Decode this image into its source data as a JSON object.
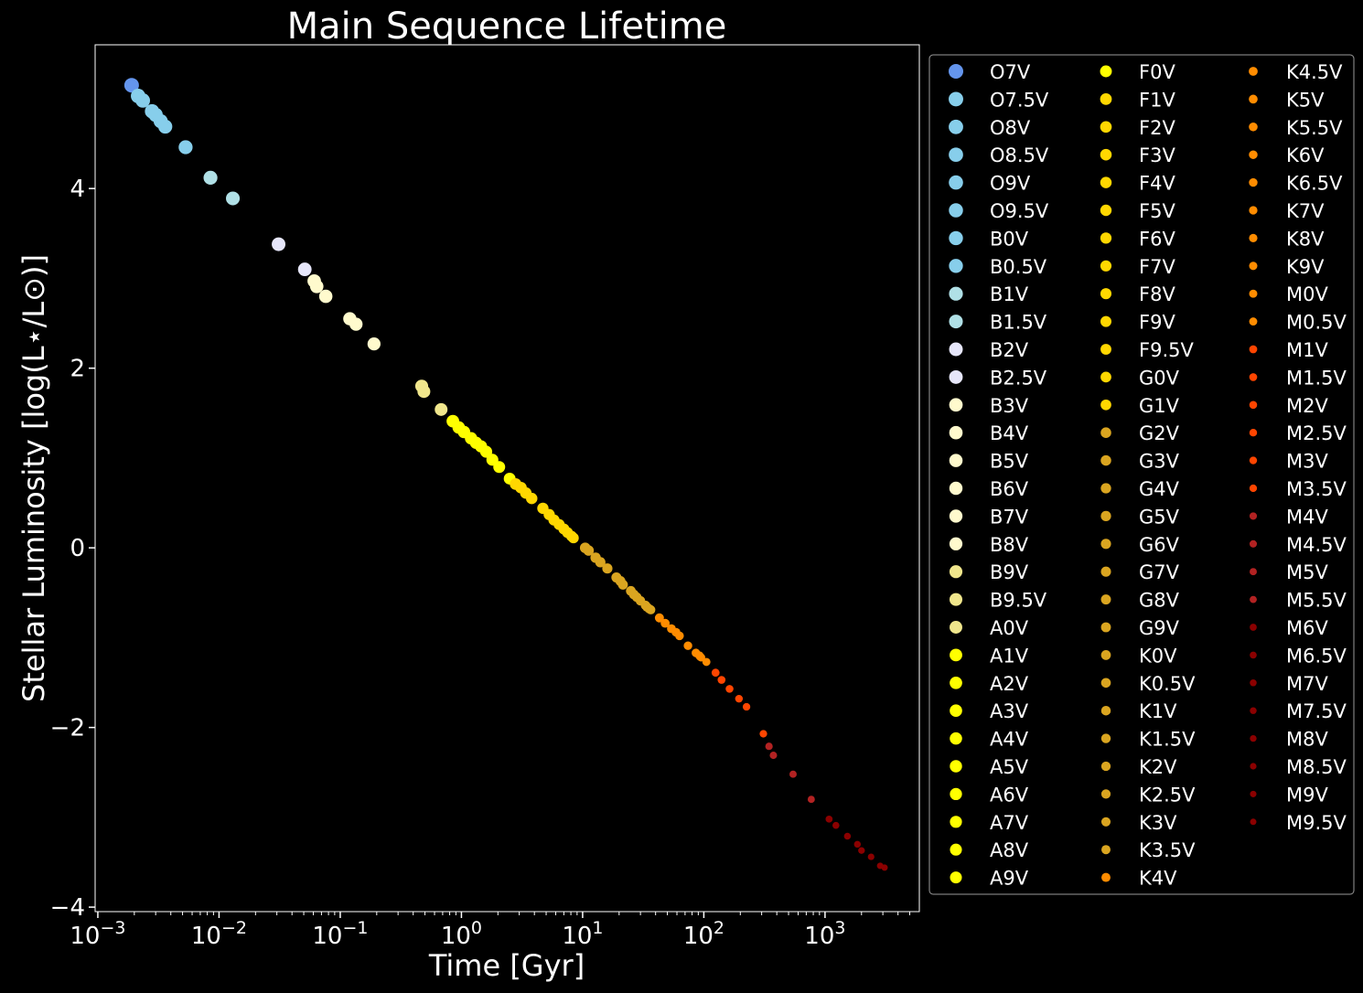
{
  "chart_data": {
    "type": "scatter",
    "title": "Main Sequence Lifetime",
    "xlabel": "Time [Gyr]",
    "ylabel": "Stellar Luminosity [log(L⋆/L⊙)]",
    "xscale": "log",
    "xlim": [
      0.00095,
      6000
    ],
    "ylim": [
      -4.05,
      5.6
    ],
    "x_ticks": [
      {
        "value": 0.001,
        "base": "10",
        "exp": "−3"
      },
      {
        "value": 0.01,
        "base": "10",
        "exp": "−2"
      },
      {
        "value": 0.1,
        "base": "10",
        "exp": "−1"
      },
      {
        "value": 1,
        "base": "10",
        "exp": "0"
      },
      {
        "value": 10,
        "base": "10",
        "exp": "1"
      },
      {
        "value": 100,
        "base": "10",
        "exp": "2"
      },
      {
        "value": 1000,
        "base": "10",
        "exp": "3"
      }
    ],
    "y_ticks": [
      {
        "value": 4,
        "label": "4"
      },
      {
        "value": 2,
        "label": "2"
      },
      {
        "value": 0,
        "label": "0"
      },
      {
        "value": -2,
        "label": "−2"
      },
      {
        "value": -4,
        "label": "−4"
      }
    ],
    "grid": false,
    "legend_position": "outside-right",
    "legend_columns": 3,
    "series": [
      {
        "name": "O7V",
        "color": "#6495ed",
        "x": 0.0019,
        "y": 5.15
      },
      {
        "name": "O7.5V",
        "color": "#87ceeb",
        "x": 0.00215,
        "y": 5.03
      },
      {
        "name": "O8V",
        "color": "#87ceeb",
        "x": 0.00235,
        "y": 4.98
      },
      {
        "name": "O8.5V",
        "color": "#87ceeb",
        "x": 0.0028,
        "y": 4.86
      },
      {
        "name": "O9V",
        "color": "#87ceeb",
        "x": 0.003,
        "y": 4.82
      },
      {
        "name": "O9.5V",
        "color": "#87ceeb",
        "x": 0.0033,
        "y": 4.75
      },
      {
        "name": "B0V",
        "color": "#87ceeb",
        "x": 0.0036,
        "y": 4.69
      },
      {
        "name": "B0.5V",
        "color": "#87ceeb",
        "x": 0.0053,
        "y": 4.46
      },
      {
        "name": "B1V",
        "color": "#b0e0e6",
        "x": 0.0085,
        "y": 4.12
      },
      {
        "name": "B1.5V",
        "color": "#b0e0e6",
        "x": 0.013,
        "y": 3.89
      },
      {
        "name": "B2V",
        "color": "#e6e6fa",
        "x": 0.031,
        "y": 3.38
      },
      {
        "name": "B2.5V",
        "color": "#e6e6fa",
        "x": 0.051,
        "y": 3.1
      },
      {
        "name": "B3V",
        "color": "#fffacd",
        "x": 0.061,
        "y": 2.97
      },
      {
        "name": "B4V",
        "color": "#fffacd",
        "x": 0.064,
        "y": 2.91
      },
      {
        "name": "B5V",
        "color": "#fffacd",
        "x": 0.076,
        "y": 2.8
      },
      {
        "name": "B6V",
        "color": "#fffacd",
        "x": 0.12,
        "y": 2.55
      },
      {
        "name": "B7V",
        "color": "#fffacd",
        "x": 0.135,
        "y": 2.49
      },
      {
        "name": "B8V",
        "color": "#fffacd",
        "x": 0.19,
        "y": 2.27
      },
      {
        "name": "B9V",
        "color": "#f0e68c",
        "x": 0.47,
        "y": 1.8
      },
      {
        "name": "B9.5V",
        "color": "#f0e68c",
        "x": 0.49,
        "y": 1.74
      },
      {
        "name": "A0V",
        "color": "#f0e68c",
        "x": 0.68,
        "y": 1.54
      },
      {
        "name": "A1V",
        "color": "#ffff00",
        "x": 0.85,
        "y": 1.41
      },
      {
        "name": "A2V",
        "color": "#ffff00",
        "x": 0.95,
        "y": 1.34
      },
      {
        "name": "A3V",
        "color": "#ffff00",
        "x": 1.05,
        "y": 1.29
      },
      {
        "name": "A4V",
        "color": "#ffff00",
        "x": 1.2,
        "y": 1.22
      },
      {
        "name": "A5V",
        "color": "#ffff00",
        "x": 1.32,
        "y": 1.17
      },
      {
        "name": "A6V",
        "color": "#ffff00",
        "x": 1.45,
        "y": 1.13
      },
      {
        "name": "A7V",
        "color": "#ffff00",
        "x": 1.6,
        "y": 1.07
      },
      {
        "name": "A8V",
        "color": "#ffff00",
        "x": 1.8,
        "y": 0.98
      },
      {
        "name": "A9V",
        "color": "#ffff00",
        "x": 2.05,
        "y": 0.9
      },
      {
        "name": "F0V",
        "color": "#ffff00",
        "x": 2.5,
        "y": 0.77
      },
      {
        "name": "F1V",
        "color": "#ffd700",
        "x": 2.8,
        "y": 0.71
      },
      {
        "name": "F2V",
        "color": "#ffd700",
        "x": 3.1,
        "y": 0.67
      },
      {
        "name": "F3V",
        "color": "#ffd700",
        "x": 3.4,
        "y": 0.61
      },
      {
        "name": "F4V",
        "color": "#ffd700",
        "x": 3.8,
        "y": 0.55
      },
      {
        "name": "F5V",
        "color": "#ffd700",
        "x": 4.7,
        "y": 0.44
      },
      {
        "name": "F6V",
        "color": "#ffd700",
        "x": 5.3,
        "y": 0.37
      },
      {
        "name": "F7V",
        "color": "#ffd700",
        "x": 5.8,
        "y": 0.31
      },
      {
        "name": "F8V",
        "color": "#ffd700",
        "x": 6.4,
        "y": 0.26
      },
      {
        "name": "F9V",
        "color": "#ffd700",
        "x": 7.0,
        "y": 0.21
      },
      {
        "name": "F9.5V",
        "color": "#ffd700",
        "x": 7.5,
        "y": 0.17
      },
      {
        "name": "G0V",
        "color": "#ffd700",
        "x": 8.1,
        "y": 0.13
      },
      {
        "name": "G1V",
        "color": "#ffd700",
        "x": 8.4,
        "y": 0.11
      },
      {
        "name": "G2V",
        "color": "#daa520",
        "x": 10.5,
        "y": 0.0
      },
      {
        "name": "G3V",
        "color": "#daa520",
        "x": 11.2,
        "y": -0.03
      },
      {
        "name": "G4V",
        "color": "#daa520",
        "x": 12.8,
        "y": -0.11
      },
      {
        "name": "G5V",
        "color": "#daa520",
        "x": 14.0,
        "y": -0.16
      },
      {
        "name": "G6V",
        "color": "#daa520",
        "x": 16.0,
        "y": -0.23
      },
      {
        "name": "G7V",
        "color": "#daa520",
        "x": 19.0,
        "y": -0.33
      },
      {
        "name": "G8V",
        "color": "#daa520",
        "x": 20.5,
        "y": -0.37
      },
      {
        "name": "G9V",
        "color": "#daa520",
        "x": 21.5,
        "y": -0.41
      },
      {
        "name": "K0V",
        "color": "#daa520",
        "x": 25.0,
        "y": -0.48
      },
      {
        "name": "K0.5V",
        "color": "#daa520",
        "x": 26.5,
        "y": -0.52
      },
      {
        "name": "K1V",
        "color": "#daa520",
        "x": 28.0,
        "y": -0.55
      },
      {
        "name": "K1.5V",
        "color": "#daa520",
        "x": 30.0,
        "y": -0.59
      },
      {
        "name": "K2V",
        "color": "#daa520",
        "x": 33.0,
        "y": -0.64
      },
      {
        "name": "K2.5V",
        "color": "#daa520",
        "x": 34.0,
        "y": -0.66
      },
      {
        "name": "K3V",
        "color": "#daa520",
        "x": 35.5,
        "y": -0.68
      },
      {
        "name": "K3.5V",
        "color": "#daa520",
        "x": 36.5,
        "y": -0.69
      },
      {
        "name": "K4V",
        "color": "#ff8c00",
        "x": 43.0,
        "y": -0.78
      },
      {
        "name": "K4.5V",
        "color": "#ff8c00",
        "x": 48.0,
        "y": -0.84
      },
      {
        "name": "K5V",
        "color": "#ff8c00",
        "x": 54.0,
        "y": -0.9
      },
      {
        "name": "K5.5V",
        "color": "#ff8c00",
        "x": 59.0,
        "y": -0.94
      },
      {
        "name": "K6V",
        "color": "#ff8c00",
        "x": 63.0,
        "y": -0.98
      },
      {
        "name": "K6.5V",
        "color": "#ff8c00",
        "x": 74.0,
        "y": -1.09
      },
      {
        "name": "K7V",
        "color": "#ff8c00",
        "x": 86.0,
        "y": -1.17
      },
      {
        "name": "K8V",
        "color": "#ff8c00",
        "x": 92.0,
        "y": -1.2
      },
      {
        "name": "K9V",
        "color": "#ff8c00",
        "x": 93.0,
        "y": -1.21
      },
      {
        "name": "M0V",
        "color": "#ff8c00",
        "x": 95.0,
        "y": -1.22
      },
      {
        "name": "M0.5V",
        "color": "#ff8c00",
        "x": 105.0,
        "y": -1.27
      },
      {
        "name": "M1V",
        "color": "#ff4500",
        "x": 125.0,
        "y": -1.39
      },
      {
        "name": "M1.5V",
        "color": "#ff4500",
        "x": 140.0,
        "y": -1.47
      },
      {
        "name": "M2V",
        "color": "#ff4500",
        "x": 163.0,
        "y": -1.57
      },
      {
        "name": "M2.5V",
        "color": "#ff4500",
        "x": 195.0,
        "y": -1.68
      },
      {
        "name": "M3V",
        "color": "#ff4500",
        "x": 225.0,
        "y": -1.77
      },
      {
        "name": "M3.5V",
        "color": "#ff4500",
        "x": 310.0,
        "y": -2.07
      },
      {
        "name": "M4V",
        "color": "#b22222",
        "x": 345.0,
        "y": -2.21
      },
      {
        "name": "M4.5V",
        "color": "#b22222",
        "x": 375.0,
        "y": -2.31
      },
      {
        "name": "M5V",
        "color": "#b22222",
        "x": 545.0,
        "y": -2.52
      },
      {
        "name": "M5.5V",
        "color": "#b22222",
        "x": 770.0,
        "y": -2.8
      },
      {
        "name": "M6V",
        "color": "#8b0000",
        "x": 1080.0,
        "y": -3.02
      },
      {
        "name": "M6.5V",
        "color": "#8b0000",
        "x": 1230.0,
        "y": -3.09
      },
      {
        "name": "M7V",
        "color": "#8b0000",
        "x": 1530.0,
        "y": -3.21
      },
      {
        "name": "M7.5V",
        "color": "#8b0000",
        "x": 1850.0,
        "y": -3.3
      },
      {
        "name": "M8V",
        "color": "#8b0000",
        "x": 2000.0,
        "y": -3.37
      },
      {
        "name": "M8.5V",
        "color": "#8b0000",
        "x": 2400.0,
        "y": -3.44
      },
      {
        "name": "M9V",
        "color": "#8b0000",
        "x": 2850.0,
        "y": -3.54
      },
      {
        "name": "M9.5V",
        "color": "#8b0000",
        "x": 3100.0,
        "y": -3.56
      }
    ]
  }
}
